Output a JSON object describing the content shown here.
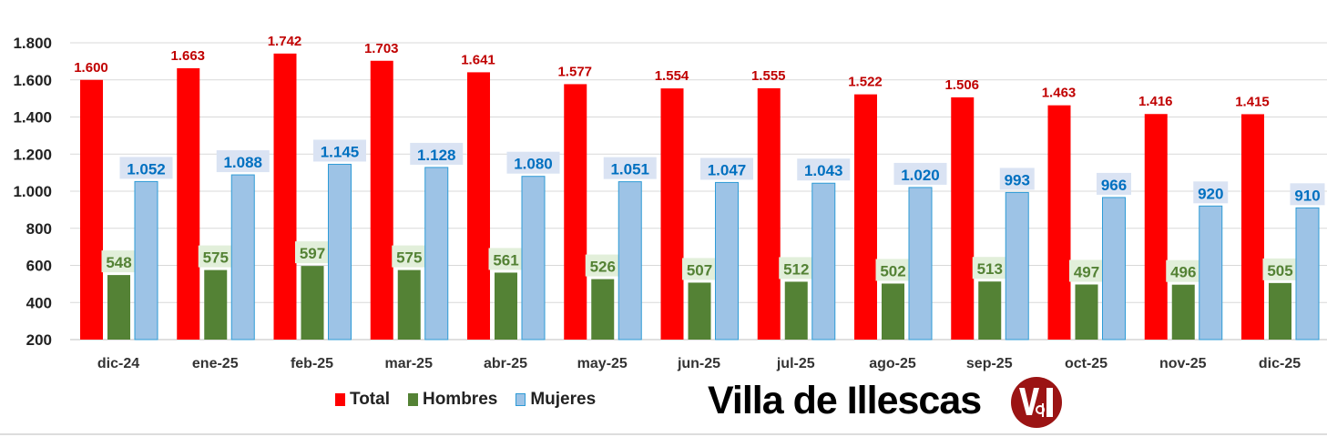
{
  "chart_data": {
    "type": "bar",
    "categories": [
      "dic-24",
      "ene-25",
      "feb-25",
      "mar-25",
      "abr-25",
      "may-25",
      "jun-25",
      "jul-25",
      "ago-25",
      "sep-25",
      "oct-25",
      "nov-25",
      "dic-25"
    ],
    "series": [
      {
        "name": "Total",
        "color": "#ff0000",
        "label_color": "#c00000",
        "values": [
          1600,
          1663,
          1742,
          1703,
          1641,
          1577,
          1554,
          1555,
          1522,
          1506,
          1463,
          1416,
          1415
        ]
      },
      {
        "name": "Hombres",
        "color": "#548235",
        "label_color": "#548235",
        "label_bg": "#e2efda",
        "values": [
          548,
          575,
          597,
          575,
          561,
          526,
          507,
          512,
          502,
          513,
          497,
          496,
          505
        ]
      },
      {
        "name": "Mujeres",
        "color": "#9dc3e6",
        "border": "#2e9bd6",
        "label_color": "#0070c0",
        "label_bg": "#dae3f3",
        "values": [
          1052,
          1088,
          1145,
          1128,
          1080,
          1051,
          1047,
          1043,
          1020,
          993,
          966,
          920,
          910
        ]
      }
    ],
    "ylim": [
      200,
      1800
    ],
    "yticks": [
      200,
      400,
      600,
      800,
      1000,
      1200,
      1400,
      1600,
      1800
    ],
    "ytick_labels": [
      "200",
      "400",
      "600",
      "800",
      "1.000",
      "1.200",
      "1.400",
      "1.600",
      "1.800"
    ],
    "grid": true,
    "legend_position": "bottom-left",
    "xlabel": "",
    "ylabel": "",
    "title": ""
  },
  "brand": {
    "name": "Villa de Illescas",
    "logo_text": "Vdi"
  }
}
